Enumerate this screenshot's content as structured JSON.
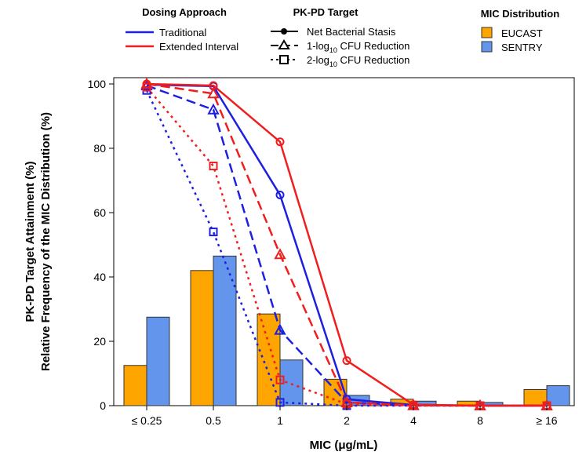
{
  "chart_data": {
    "type": "bar+line",
    "xlabel": "MIC (μg/mL)",
    "ylabel_line1": "PK-PD Target Attainment (%)",
    "ylabel_line2": "Relative Frequency of the MIC Distribution (%)",
    "ylim": [
      0,
      100
    ],
    "yticks": [
      "0",
      "20",
      "40",
      "60",
      "80",
      "100"
    ],
    "categories": [
      "≤ 0.25",
      "0.5",
      "1",
      "2",
      "4",
      "8",
      "≥ 16"
    ],
    "legend": {
      "dosing": {
        "title": "Dosing Approach",
        "items": [
          {
            "label": "Traditional",
            "color": "#1f1fe0"
          },
          {
            "label": "Extended Interval",
            "color": "#f01e1e"
          }
        ]
      },
      "target": {
        "title": "PK-PD Target",
        "items": [
          {
            "label": "Net Bacterial Stasis",
            "marker": "circle",
            "dash": "solid"
          },
          {
            "label_pre": "1-log",
            "label_sub": "10",
            "label_post": " CFU Reduction",
            "marker": "triangle",
            "dash": "long-dash"
          },
          {
            "label_pre": "2-log",
            "label_sub": "10",
            "label_post": " CFU Reduction",
            "marker": "square",
            "dash": "dotted"
          }
        ]
      },
      "mic": {
        "title": "MIC Distribution",
        "items": [
          {
            "label": "EUCAST",
            "color": "#ffa500"
          },
          {
            "label": "SENTRY",
            "color": "#6495ed"
          }
        ]
      }
    },
    "bars": [
      {
        "name": "EUCAST",
        "color": "#ffa500",
        "values": [
          12.5,
          42,
          28.5,
          8.2,
          2,
          1.4,
          5
        ]
      },
      {
        "name": "SENTRY",
        "color": "#6495ed",
        "values": [
          27.5,
          46.5,
          14.2,
          3.2,
          1.4,
          1.0,
          6.2
        ]
      }
    ],
    "series": [
      {
        "dosing": "Traditional",
        "target": "Net Bacterial Stasis",
        "color": "#1f1fe0",
        "dash": "solid",
        "marker": "circle",
        "values": [
          99.8,
          99.3,
          65.5,
          2,
          0.2,
          0,
          0
        ]
      },
      {
        "dosing": "Traditional",
        "target": "1-log10 CFU Reduction",
        "color": "#1f1fe0",
        "dash": "long-dash",
        "marker": "triangle",
        "values": [
          99.5,
          92,
          23.5,
          1,
          0.1,
          0,
          0
        ]
      },
      {
        "dosing": "Traditional",
        "target": "2-log10 CFU Reduction",
        "color": "#1f1fe0",
        "dash": "dotted",
        "marker": "square",
        "values": [
          98,
          54,
          1,
          0,
          0,
          0,
          0
        ]
      },
      {
        "dosing": "Extended Interval",
        "target": "Net Bacterial Stasis",
        "color": "#f01e1e",
        "dash": "solid",
        "marker": "circle",
        "values": [
          100,
          99.5,
          82,
          14,
          0.3,
          0,
          0
        ]
      },
      {
        "dosing": "Extended Interval",
        "target": "1-log10 CFU Reduction",
        "color": "#f01e1e",
        "dash": "long-dash",
        "marker": "triangle",
        "values": [
          100,
          97,
          47,
          1,
          0.1,
          0,
          0
        ]
      },
      {
        "dosing": "Extended Interval",
        "target": "2-log10 CFU Reduction",
        "color": "#f01e1e",
        "dash": "dotted",
        "marker": "square",
        "values": [
          99,
          74.5,
          8,
          0.5,
          0,
          0,
          0
        ]
      }
    ]
  }
}
